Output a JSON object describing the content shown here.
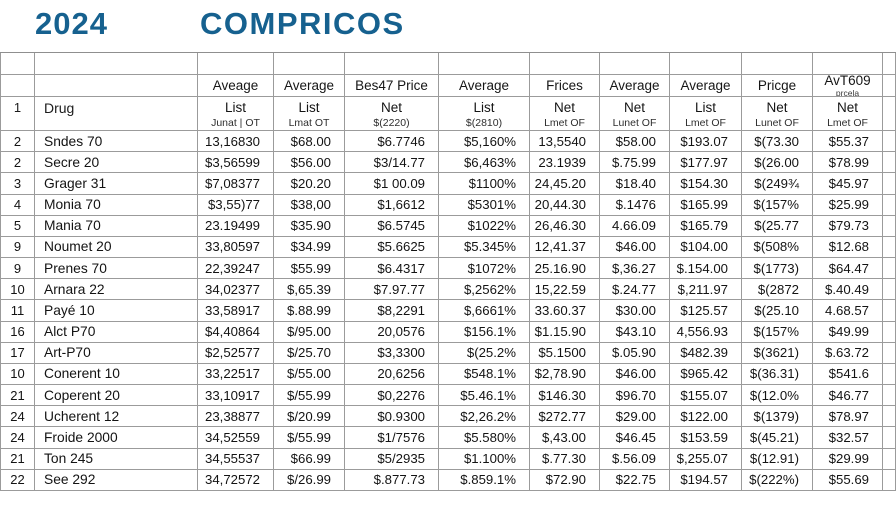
{
  "title": {
    "year": "2024",
    "name": "COMPRICOS",
    "accent_color": "#16618f"
  },
  "table": {
    "gridline_color": "#9b9b9b",
    "header_row_label": "1",
    "drug_column_label": "Drug",
    "columns": [
      {
        "top": "Aveage",
        "top2": "",
        "l1": "List",
        "l2": "Junat | OT"
      },
      {
        "top": "Average",
        "top2": "",
        "l1": "List",
        "l2": "Lmat OT"
      },
      {
        "top": "Bes47 Price",
        "top2": "",
        "l1": "Net",
        "l2": "$(2220)"
      },
      {
        "top": "Average",
        "top2": "",
        "l1": "List",
        "l2": "$(2810)"
      },
      {
        "top": "Frices",
        "top2": "",
        "l1": "Net",
        "l2": "Lmet OF"
      },
      {
        "top": "Average",
        "top2": "",
        "l1": "Net",
        "l2": "Lunet OF"
      },
      {
        "top": "Average",
        "top2": "",
        "l1": "List",
        "l2": "Lmet OF"
      },
      {
        "top": "Pricge",
        "top2": "",
        "l1": "Net",
        "l2": "Lunet OF"
      },
      {
        "top": "AvT609",
        "top2": "prcela",
        "l1": "Net",
        "l2": "Lmet OF"
      }
    ],
    "rows": [
      {
        "num": "2",
        "drug": "Sndes 70",
        "values": [
          "13,16830",
          "$68.00",
          "$6.7746",
          "$5,160%",
          "13,5540",
          "$58.00",
          "$193.07",
          "$(73.30",
          "$55.37"
        ]
      },
      {
        "num": "2",
        "drug": "Secre 20",
        "values": [
          "$3,56599",
          "$56.00",
          "$3/14.77",
          "$6,463%",
          "23.1939",
          "$.75.99",
          "$177.97",
          "$(26.00",
          "$78.99"
        ]
      },
      {
        "num": "3",
        "drug": "Grager 31",
        "values": [
          "$7,08377",
          "$20.20",
          "$1 00.09",
          "$1100%",
          "24,45.20",
          "$18.40",
          "$154.30",
          "$(249¾",
          "$45.97"
        ]
      },
      {
        "num": "4",
        "drug": "Monia 70",
        "values": [
          "$3,55)77",
          "$38,00",
          "$1,6612",
          "$5301%",
          "20,44.30",
          "$.1476",
          "$165.99",
          "$(157%",
          "$25.99"
        ]
      },
      {
        "num": "5",
        "drug": "Mania 70",
        "values": [
          "23.19499",
          "$35.90",
          "$6.5745",
          "$1022%",
          "26,46.30",
          "4.66.09",
          "$165.79",
          "$(25.77",
          "$79.73"
        ]
      },
      {
        "num": "9",
        "drug": "Noumet 20",
        "values": [
          "33,80597",
          "$34.99",
          "$5.6625",
          "$5.345%",
          "12,41.37",
          "$46.00",
          "$104.00",
          "$(508%",
          "$12.68"
        ]
      },
      {
        "num": "9",
        "drug": "Prenes 70",
        "values": [
          "22,39247",
          "$55.99",
          "$6.4317",
          "$1072%",
          "25.16.90",
          "$,36.27",
          "$.154.00",
          "$(1773)",
          "$64.47"
        ]
      },
      {
        "num": "10",
        "drug": "Arnara 22",
        "values": [
          "34,02377",
          "$,65.39",
          "$7.97.77",
          "$,2562%",
          "15,22.59",
          "$.24.77",
          "$,211.97",
          "$(2872",
          "$.40.49"
        ]
      },
      {
        "num": "11",
        "drug": "Payé 10",
        "values": [
          "33,58917",
          "$.88.99",
          "$8,2291",
          "$,6661%",
          "33.60.37",
          "$30.00",
          "$125.57",
          "$(25.10",
          "4.68.57"
        ]
      },
      {
        "num": "16",
        "drug": "Alct P70",
        "values": [
          "$4,40864",
          "$/95.00",
          "20,0576",
          "$156.1%",
          "$1.15.90",
          "$43.10",
          "4,556.93",
          "$(157%",
          "$49.99"
        ]
      },
      {
        "num": "17",
        "drug": "Art-P70",
        "values": [
          "$2,52577",
          "$/25.70",
          "$3,3300",
          "$(25.2%",
          "$5.1500",
          "$.05.90",
          "$482.39",
          "$(3621)",
          "$.63.72"
        ]
      },
      {
        "num": "10",
        "drug": "Conerent 10",
        "values": [
          "33,22517",
          "$/55.00",
          "20,6256",
          "$548.1%",
          "$2,78.90",
          "$46.00",
          "$965.42",
          "$(36.31)",
          "$541.6"
        ]
      },
      {
        "num": "21",
        "drug": "Coperent 20",
        "values": [
          "33,10917",
          "$/55.99",
          "$0,2276",
          "$5.46.1%",
          "$146.30",
          "$96.70",
          "$155.07",
          "$(12.0%",
          "$46.77"
        ]
      },
      {
        "num": "24",
        "drug": "Ucherent 12",
        "values": [
          "23,38877",
          "$/20.99",
          "$0.9300",
          "$2,26.2%",
          "$272.77",
          "$29.00",
          "$122.00",
          "$(1379)",
          "$78.97"
        ]
      },
      {
        "num": "24",
        "drug": "Froide 2000",
        "values": [
          "34,52559",
          "$/55.99",
          "$1/7576",
          "$5.580%",
          "$,43.00",
          "$46.45",
          "$153.59",
          "$(45.21)",
          "$32.57"
        ]
      },
      {
        "num": "21",
        "drug": "Ton 245",
        "values": [
          "34,55537",
          "$66.99",
          "$5/2935",
          "$1.100%",
          "$.77.30",
          "$.56.09",
          "$,255.07",
          "$(12.91)",
          "$29.99"
        ]
      },
      {
        "num": "22",
        "drug": "See 292",
        "values": [
          "34,72572",
          "$/26.99",
          "$.877.73",
          "$.859.1%",
          "$72.90",
          "$22.75",
          "$194.57",
          "$(222%)",
          "$55.69"
        ]
      }
    ]
  }
}
